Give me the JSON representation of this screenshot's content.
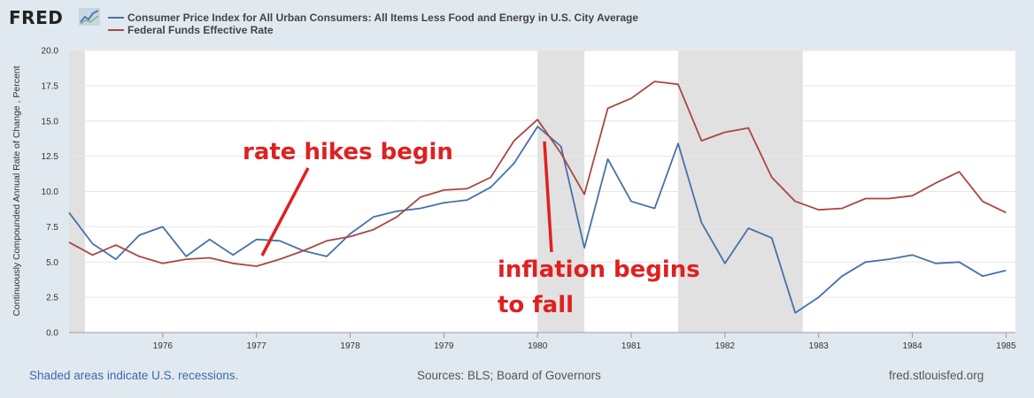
{
  "brand": "FRED",
  "footer": {
    "recession_note": "Shaded areas indicate U.S. recessions.",
    "sources": "Sources: BLS; Board of Governors",
    "site": "fred.stlouisfed.org"
  },
  "annotations": {
    "rate_hikes": "rate hikes begin",
    "inflation_line1": "inflation begins",
    "inflation_line2": "to fall"
  },
  "chart_data": {
    "type": "line",
    "ylabel": "Continuously Compounded Annual Rate of Change , Percent",
    "xlim": [
      1975.0,
      1985.1
    ],
    "ylim": [
      0,
      20
    ],
    "yticks": [
      "0.0",
      "2.5",
      "5.0",
      "7.5",
      "10.0",
      "12.5",
      "15.0",
      "17.5",
      "20.0"
    ],
    "xticks": [
      "1976",
      "1977",
      "1978",
      "1979",
      "1980",
      "1981",
      "1982",
      "1983",
      "1984",
      "1985"
    ],
    "grid": true,
    "legend_position": "top",
    "recessions": [
      [
        1975.0,
        1975.17
      ],
      [
        1980.0,
        1980.5
      ],
      [
        1981.5,
        1982.83
      ]
    ],
    "series": [
      {
        "name": "Consumer Price Index for All Urban Consumers: All Items Less Food and Energy in U.S. City Average",
        "color": "#4572a7",
        "x": [
          1975.0,
          1975.25,
          1975.5,
          1975.75,
          1976.0,
          1976.25,
          1976.5,
          1976.75,
          1977.0,
          1977.25,
          1977.5,
          1977.75,
          1978.0,
          1978.25,
          1978.5,
          1978.75,
          1979.0,
          1979.25,
          1979.5,
          1979.75,
          1980.0,
          1980.25,
          1980.5,
          1980.75,
          1981.0,
          1981.25,
          1981.5,
          1981.75,
          1982.0,
          1982.25,
          1982.5,
          1982.75,
          1983.0,
          1983.25,
          1983.5,
          1983.75,
          1984.0,
          1984.25,
          1984.5,
          1984.75,
          1985.0
        ],
        "values": [
          8.5,
          6.3,
          5.2,
          6.9,
          7.5,
          5.4,
          6.6,
          5.5,
          6.6,
          6.5,
          5.8,
          5.4,
          7.0,
          8.2,
          8.6,
          8.8,
          9.2,
          9.4,
          10.3,
          12.0,
          14.6,
          13.2,
          6.0,
          12.3,
          9.3,
          8.8,
          13.4,
          7.8,
          4.9,
          7.4,
          6.7,
          1.4,
          2.5,
          4.0,
          5.0,
          5.2,
          5.5,
          4.9,
          5.0,
          4.0,
          4.4
        ]
      },
      {
        "name": "Federal Funds Effective Rate",
        "color": "#aa4643",
        "x": [
          1975.0,
          1975.25,
          1975.5,
          1975.75,
          1976.0,
          1976.25,
          1976.5,
          1976.75,
          1977.0,
          1977.25,
          1977.5,
          1977.75,
          1978.0,
          1978.25,
          1978.5,
          1978.75,
          1979.0,
          1979.25,
          1979.5,
          1979.75,
          1980.0,
          1980.25,
          1980.5,
          1980.75,
          1981.0,
          1981.25,
          1981.5,
          1981.75,
          1982.0,
          1982.25,
          1982.5,
          1982.75,
          1983.0,
          1983.25,
          1983.5,
          1983.75,
          1984.0,
          1984.25,
          1984.5,
          1984.75,
          1985.0
        ],
        "values": [
          6.4,
          5.5,
          6.2,
          5.4,
          4.9,
          5.2,
          5.3,
          4.9,
          4.7,
          5.2,
          5.8,
          6.5,
          6.8,
          7.3,
          8.2,
          9.6,
          10.1,
          10.2,
          11.0,
          13.6,
          15.1,
          12.7,
          9.8,
          15.9,
          16.6,
          17.8,
          17.6,
          13.6,
          14.2,
          14.5,
          11.0,
          9.3,
          8.7,
          8.8,
          9.5,
          9.5,
          9.7,
          10.6,
          11.4,
          9.3,
          8.5
        ]
      }
    ]
  }
}
